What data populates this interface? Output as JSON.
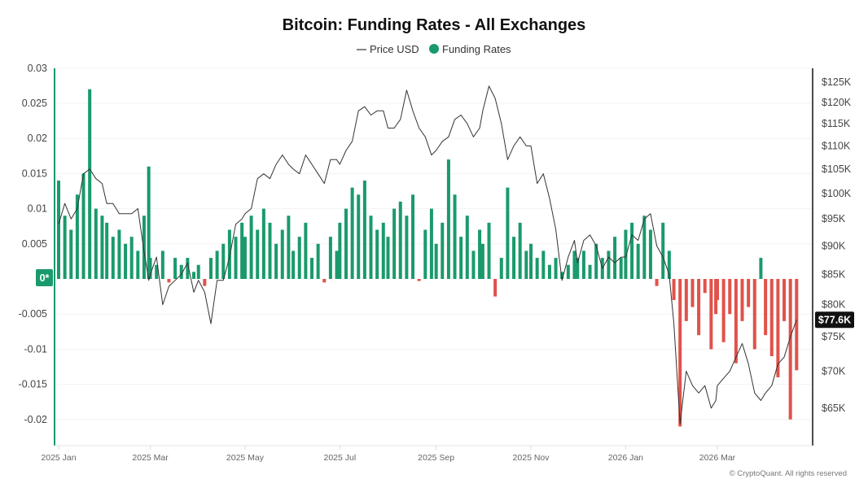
{
  "chart_data": {
    "type": "bar",
    "title": "Bitcoin: Funding Rates - All Exchanges",
    "legend": [
      {
        "name": "Price USD",
        "marker": "line",
        "color": "#333333"
      },
      {
        "name": "Funding Rates",
        "marker": "dot",
        "color": "#1a9a6c"
      }
    ],
    "legend_placement": "top-center",
    "colors": {
      "positive": "#1a9a6c",
      "negative": "#e0524a",
      "price": "#333333",
      "zero_badge": "#1a9a6c"
    },
    "left_axis": {
      "ylim": [
        -0.023,
        0.03
      ],
      "ticks": [
        "0.03",
        "0.025",
        "0.02",
        "0.015",
        "0.01",
        "0.005",
        "-0.005",
        "-0.01",
        "-0.015",
        "-0.02"
      ],
      "ticks_values": [
        0.03,
        0.025,
        0.02,
        0.015,
        0.01,
        0.005,
        -0.005,
        -0.01,
        -0.015,
        -0.02
      ],
      "zero_label": "0*"
    },
    "right_axis": {
      "scale": "log",
      "ticks": [
        "$125K",
        "$120K",
        "$115K",
        "$110K",
        "$105K",
        "$100K",
        "$95K",
        "$90K",
        "$85K",
        "$80K",
        "$75K",
        "$70K",
        "$65K"
      ],
      "ticks_values": [
        125000,
        120000,
        115000,
        110000,
        105000,
        100000,
        95000,
        90000,
        85000,
        80000,
        75000,
        70000,
        65000
      ],
      "current_label": "$77.6K",
      "current_value": 77600
    },
    "x_ticks": [
      {
        "label": "2025 Jan",
        "date": "2025-01-01"
      },
      {
        "label": "2025 Mar",
        "date": "2025-03-01"
      },
      {
        "label": "2025 May",
        "date": "2025-05-01"
      },
      {
        "label": "2025 Jul",
        "date": "2025-07-01"
      },
      {
        "label": "2025 Sep",
        "date": "2025-09-01"
      },
      {
        "label": "2025 Nov",
        "date": "2025-11-01"
      },
      {
        "label": "2026 Jan",
        "date": "2026-01-01"
      },
      {
        "label": "2026 Mar",
        "date": "2026-03-01"
      }
    ],
    "grid": true,
    "months": [
      "2025-01",
      "2025-02",
      "2025-03",
      "2025-04",
      "2025-05",
      "2025-06",
      "2025-07",
      "2025-08",
      "2025-09",
      "2025-10",
      "2025-11",
      "2025-12",
      "2026-01",
      "2026-02",
      "2026-03",
      "2026-04"
    ],
    "days": [
      1,
      5,
      9,
      13,
      17,
      21,
      25,
      29
    ],
    "funding_rates": [
      [
        0.014,
        0.009,
        0.007,
        0.012,
        0.015,
        0.027,
        0.01,
        0.009
      ],
      [
        0.008,
        0.006,
        0.007,
        0.005,
        0.006,
        0.004,
        0.009,
        0.016
      ],
      [
        0.003,
        0.002,
        0.004,
        -0.0005,
        0.003,
        0.002,
        0.003,
        0.001
      ],
      [
        0.002,
        -0.001,
        0.003,
        0.004,
        0.005,
        0.007,
        0.006,
        0.008
      ],
      [
        0.006,
        0.009,
        0.007,
        0.01,
        0.008,
        0.005,
        0.007,
        0.009
      ],
      [
        0.004,
        0.006,
        0.008,
        0.003,
        0.005,
        -0.0005,
        0.006,
        0.004
      ],
      [
        0.008,
        0.01,
        0.013,
        0.012,
        0.014,
        0.009,
        0.007,
        0.008
      ],
      [
        0.006,
        0.01,
        0.011,
        0.009,
        0.012,
        -0.0003,
        0.007,
        0.01
      ],
      [
        0.005,
        0.008,
        0.017,
        0.012,
        0.006,
        0.009,
        0.004,
        0.007
      ],
      [
        0.005,
        0.008,
        -0.0025,
        0.003,
        0.013,
        0.006,
        0.008,
        0.004
      ],
      [
        0.005,
        0.003,
        0.004,
        0.002,
        0.003,
        0.001,
        0.002,
        0.004
      ],
      [
        0.003,
        0.004,
        0.002,
        0.005,
        0.003,
        0.004,
        0.006,
        0.003
      ],
      [
        0.007,
        0.008,
        0.005,
        0.009,
        0.007,
        -0.001,
        0.008,
        0.004
      ],
      [
        -0.003,
        -0.021,
        -0.006,
        -0.004,
        -0.008,
        -0.002,
        -0.01,
        -0.005
      ],
      [
        -0.003,
        -0.009,
        -0.005,
        -0.012,
        -0.006,
        -0.004,
        -0.01,
        0.003
      ],
      [
        -0.008,
        -0.011,
        -0.014,
        -0.006,
        -0.02,
        -0.013
      ]
    ],
    "price_usd": [
      [
        94000,
        98000,
        95000,
        97000,
        104000,
        105000,
        103000,
        102000
      ],
      [
        98000,
        98000,
        96000,
        96000,
        96000,
        97000,
        89000,
        84000
      ],
      [
        85000,
        88000,
        80000,
        83000,
        84000,
        85000,
        87000,
        82000
      ],
      [
        84000,
        82000,
        77000,
        84000,
        84000,
        88000,
        94000,
        95000
      ],
      [
        96000,
        97000,
        103000,
        104000,
        103000,
        106000,
        108000,
        106000
      ],
      [
        105000,
        104000,
        108000,
        106000,
        104000,
        102000,
        107000,
        107000
      ],
      [
        106000,
        109000,
        111000,
        118000,
        119000,
        117000,
        118000,
        118000
      ],
      [
        114000,
        114000,
        116000,
        123000,
        118000,
        114000,
        112000,
        108000
      ],
      [
        109000,
        111000,
        112000,
        116000,
        117000,
        115000,
        112000,
        114000
      ],
      [
        118000,
        124000,
        121000,
        115000,
        107000,
        110000,
        112000,
        110000
      ],
      [
        110000,
        102000,
        104000,
        99000,
        93000,
        84000,
        88000,
        91000
      ],
      [
        87000,
        91000,
        92000,
        90000,
        86000,
        88000,
        87000,
        88000
      ],
      [
        88000,
        92000,
        91000,
        95000,
        96000,
        90000,
        88000,
        85000
      ],
      [
        77000,
        63000,
        70000,
        68000,
        67000,
        68000,
        65000,
        66000
      ],
      [
        68000,
        69000,
        70000,
        72000,
        74000,
        71000,
        67000,
        66000
      ],
      [
        67000,
        68000,
        71000,
        72000,
        75000,
        77600
      ]
    ]
  },
  "watermark": "© CryptoQuant. All rights reserved"
}
